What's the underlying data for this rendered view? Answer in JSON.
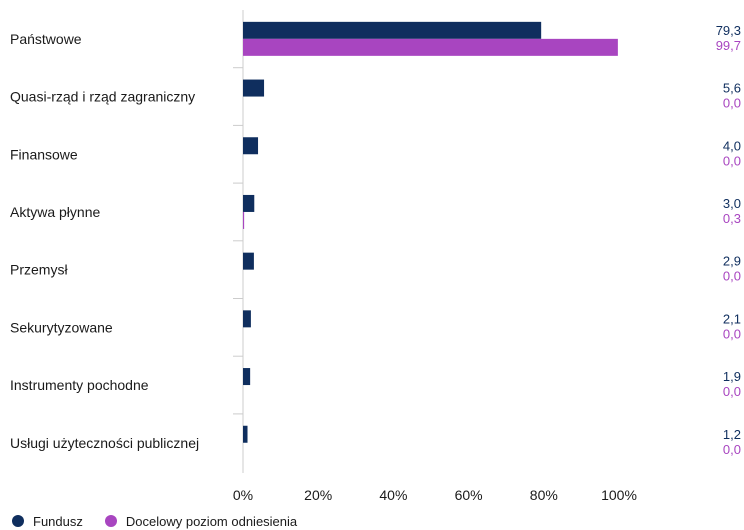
{
  "chart_data": {
    "type": "bar",
    "orientation": "horizontal",
    "categories": [
      "Państwowe",
      "Quasi-rząd i rząd zagraniczny",
      "Finansowe",
      "Aktywa płynne",
      "Przemysł",
      "Sekurytyzowane",
      "Instrumenty pochodne",
      "Usługi użyteczności publicznej"
    ],
    "series": [
      {
        "name": "Fundusz",
        "color": "#0f2e5e",
        "values": [
          79.3,
          5.6,
          4.0,
          3.0,
          2.9,
          2.1,
          1.9,
          1.2
        ],
        "labels": [
          "79,3",
          "5,6",
          "4,0",
          "3,0",
          "2,9",
          "2,1",
          "1,9",
          "1,2"
        ]
      },
      {
        "name": "Docelowy poziom odniesienia",
        "color": "#a845c0",
        "values": [
          99.7,
          0.0,
          0.0,
          0.3,
          0.0,
          0.0,
          0.0,
          0.0
        ],
        "labels": [
          "99,7",
          "0,0",
          "0,0",
          "0,3",
          "0,0",
          "0,0",
          "0,0",
          "0,0"
        ]
      }
    ],
    "x_ticks": [
      "0%",
      "20%",
      "40%",
      "60%",
      "80%",
      "100%"
    ],
    "xlim": [
      0,
      120
    ],
    "grid": false,
    "legend_position": "bottom-left"
  }
}
